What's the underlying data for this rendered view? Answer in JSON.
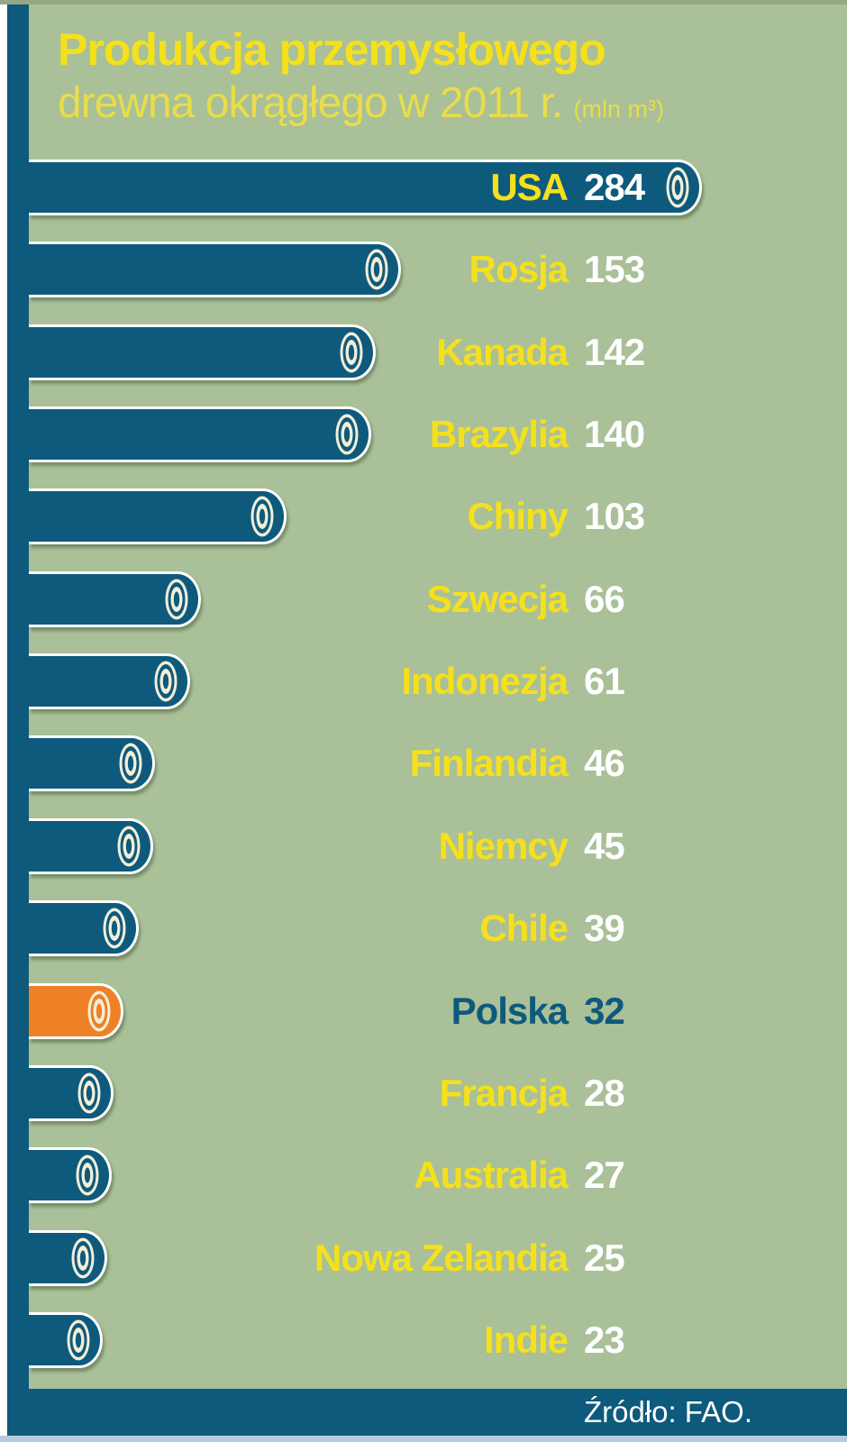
{
  "title": {
    "line1": "Produkcja przemysłowego",
    "line2": "drewna okrągłego w 2011 r.",
    "unit": "(mln m³)"
  },
  "source": {
    "label": "Źródło: FAO."
  },
  "colors": {
    "background": "#a9c098",
    "bar_teal": "#0e5a7c",
    "bar_highlight_orange": "#ee8126",
    "bar_border_white": "#ffffff",
    "name_yellow": "#f5e01c",
    "value_white": "#ffffff",
    "highlight_text_teal": "#0e5a7c",
    "ring_cream": "#f3eed8",
    "footer_teal": "#0e5a7c",
    "bottom_strip_blue": "#b7cbdc"
  },
  "chart_data": {
    "type": "bar",
    "orientation": "horizontal",
    "title": "Produkcja przemysłowego drewna okrągłego w 2011 r.",
    "unit": "mln m³",
    "categories": [
      "USA",
      "Rosja",
      "Kanada",
      "Brazylia",
      "Chiny",
      "Szwecja",
      "Indonezja",
      "Finlandia",
      "Niemcy",
      "Chile",
      "Polska",
      "Francja",
      "Australia",
      "Nowa Zelandia",
      "Indie"
    ],
    "values": [
      284,
      153,
      142,
      140,
      103,
      66,
      61,
      46,
      45,
      39,
      32,
      28,
      27,
      25,
      23
    ],
    "highlight_index": 10,
    "highlight_category": "Polska",
    "value_range": [
      0,
      284
    ],
    "grid": false,
    "legend": false,
    "bar_end_icon": "log-cross-section",
    "source": "Źródło: FAO."
  }
}
